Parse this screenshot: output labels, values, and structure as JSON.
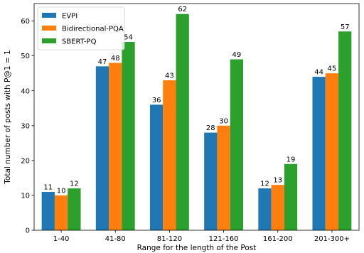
{
  "chart_data": {
    "type": "bar",
    "title": "",
    "xlabel": "Range for the length of the Post",
    "ylabel": "Total number of posts with P@1 = 1",
    "categories": [
      "1-40",
      "41-80",
      "81-120",
      "121-160",
      "161-200",
      "201-300+"
    ],
    "series": [
      {
        "name": "EVPI",
        "color": "#1f77b4",
        "values": [
          11,
          47,
          36,
          28,
          12,
          44
        ]
      },
      {
        "name": "Bidirectional-PQA",
        "color": "#ff7f0e",
        "values": [
          10,
          48,
          43,
          30,
          13,
          45
        ]
      },
      {
        "name": "SBERT-PQ",
        "color": "#2ca02c",
        "values": [
          12,
          54,
          62,
          49,
          19,
          57
        ]
      }
    ],
    "ylim": [
      0,
      65
    ],
    "yticks": [
      0,
      10,
      20,
      30,
      40,
      50,
      60
    ],
    "grid": false,
    "legend_position": "top-left",
    "data_labels": true
  }
}
